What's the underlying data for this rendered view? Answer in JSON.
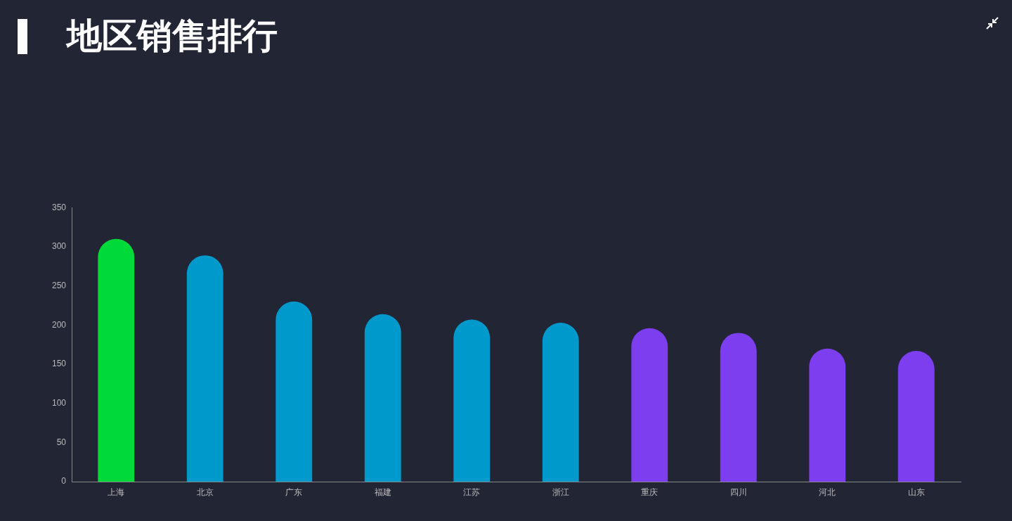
{
  "chart_data": {
    "type": "bar",
    "title": "地区销售排行",
    "categories": [
      "上海",
      "北京",
      "广东",
      "福建",
      "江苏",
      "浙江",
      "重庆",
      "四川",
      "河北",
      "山东"
    ],
    "values": [
      310,
      289,
      230,
      214,
      207,
      203,
      196,
      190,
      170,
      167
    ],
    "colors": [
      "#00d93a",
      "#0099cc",
      "#0099cc",
      "#0099cc",
      "#0099cc",
      "#0099cc",
      "#7d3ef0",
      "#7d3ef0",
      "#7d3ef0",
      "#7d3ef0"
    ],
    "ylim": [
      0,
      350
    ],
    "yticks": [
      0,
      50,
      100,
      150,
      200,
      250,
      300,
      350
    ],
    "grid": false,
    "legend": false
  }
}
